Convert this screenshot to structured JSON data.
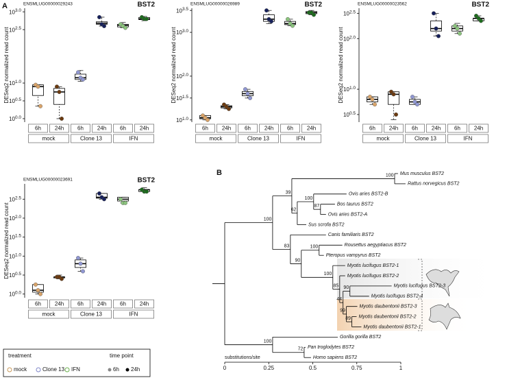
{
  "panel_labels": [
    "A",
    "B"
  ],
  "chart_data": [
    {
      "type": "box",
      "gene": "ENSMLUG00000029243",
      "title": "BST2",
      "ylabel": "DESeq2 normalized read count",
      "log_scale": true,
      "ylim": [
        0.8,
        1260
      ],
      "yticks": [
        {
          "value": 1,
          "label": "10^0.0"
        },
        {
          "value": 3.162,
          "label": "10^0.5"
        },
        {
          "value": 10,
          "label": "10^1.0"
        },
        {
          "value": 316.2,
          "label": "10^2.5"
        },
        {
          "value": 1000,
          "label": "10^3.0"
        }
      ],
      "categories": [
        "6h",
        "24h",
        "6h",
        "24h",
        "6h",
        "24h"
      ],
      "groups": [
        "mock",
        "Clone 13",
        "IFN"
      ],
      "point_colors": [
        "#d9a46a",
        "#6b3a10",
        "#9097d2",
        "#16205a",
        "#8cc47e",
        "#1d6b1d"
      ],
      "boxes": [
        {
          "low": 2.24,
          "q1": 4.47,
          "median": 7.94,
          "q3": 8.91,
          "high": 8.91,
          "points": [
            8.91,
            7.94,
            2.24
          ]
        },
        {
          "low": 1,
          "q1": 2.51,
          "median": 5.62,
          "q3": 7.08,
          "high": 7.94,
          "points": [
            7.94,
            5.62,
            1
          ]
        },
        {
          "low": 11.2,
          "q1": 12.6,
          "median": 14.1,
          "q3": 17.8,
          "high": 22.4,
          "points": [
            19.95,
            14.1,
            12.6
          ]
        },
        {
          "low": 398,
          "q1": 447,
          "median": 479,
          "q3": 525,
          "high": 708,
          "points": [
            708,
            447,
            398
          ]
        },
        {
          "low": 355,
          "q1": 376,
          "median": 417,
          "q3": 447,
          "high": 501,
          "points": [
            447,
            398,
            355
          ]
        },
        {
          "low": 562,
          "q1": 603,
          "median": 631,
          "q3": 692,
          "high": 741,
          "points": [
            708,
            631,
            631
          ]
        }
      ]
    },
    {
      "type": "box",
      "gene": "ENSMLUG00000026989",
      "title": "BST2",
      "ylabel": "DESeq2 normalized read count",
      "log_scale": true,
      "ylim": [
        8.91,
        3548
      ],
      "yticks": [
        {
          "value": 10,
          "label": "10^1.0"
        },
        {
          "value": 31.62,
          "label": "10^1.5"
        },
        {
          "value": 100,
          "label": "10^2.0"
        },
        {
          "value": 1000,
          "label": "10^3.0"
        },
        {
          "value": 3162,
          "label": "10^3.5"
        }
      ],
      "categories": [
        "6h",
        "24h",
        "6h",
        "24h",
        "6h",
        "24h"
      ],
      "groups": [
        "mock",
        "Clone 13",
        "IFN"
      ],
      "point_colors": [
        "#d9a46a",
        "#6b3a10",
        "#9097d2",
        "#16205a",
        "#8cc47e",
        "#1d6b1d"
      ],
      "boxes": [
        {
          "low": 10,
          "q1": 10.6,
          "median": 11.2,
          "q3": 12.6,
          "high": 12.6,
          "points": [
            12.6,
            11.2,
            10
          ]
        },
        {
          "low": 17.8,
          "q1": 18.8,
          "median": 20,
          "q3": 21.1,
          "high": 22.4,
          "points": [
            22.4,
            20,
            17.8
          ]
        },
        {
          "low": 31.6,
          "q1": 35.5,
          "median": 39.8,
          "q3": 44.7,
          "high": 50.1,
          "points": [
            50.1,
            39.8,
            31.6
          ]
        },
        {
          "low": 1585,
          "q1": 1778,
          "median": 1995,
          "q3": 2512,
          "high": 3162,
          "points": [
            3162,
            1995,
            1778
          ]
        },
        {
          "low": 1413,
          "q1": 1496,
          "median": 1585,
          "q3": 1778,
          "high": 1995,
          "points": [
            1995,
            1585,
            1413
          ]
        },
        {
          "low": 2512,
          "q1": 2661,
          "median": 2818,
          "q3": 2985,
          "high": 3162,
          "points": [
            2818,
            2818,
            2512
          ]
        }
      ]
    },
    {
      "type": "box",
      "gene": "ENSMLUG00000023562",
      "title": "BST2",
      "ylabel": "DESeq2 normalized read count",
      "log_scale": true,
      "ylim": [
        2.24,
        398
      ],
      "yticks": [
        {
          "value": 3.162,
          "label": "10^0.5"
        },
        {
          "value": 10,
          "label": "10^1.0"
        },
        {
          "value": 100,
          "label": "10^2.0"
        },
        {
          "value": 316.2,
          "label": "10^2.5"
        }
      ],
      "categories": [
        "6h",
        "24h",
        "6h",
        "24h",
        "6h",
        "24h"
      ],
      "groups": [
        "mock",
        "Clone 13",
        "IFN"
      ],
      "point_colors": [
        "#d9a46a",
        "#6b3a10",
        "#9097d2",
        "#16205a",
        "#8cc47e",
        "#1d6b1d"
      ],
      "boxes": [
        {
          "low": 5.01,
          "q1": 5.62,
          "median": 6.31,
          "q3": 7.08,
          "high": 7.08,
          "points": [
            7.08,
            6.31,
            5.01
          ]
        },
        {
          "low": 2.51,
          "q1": 5.01,
          "median": 7.94,
          "q3": 8.91,
          "high": 8.91,
          "points": [
            8.91,
            7.94,
            3.16
          ]
        },
        {
          "low": 5.01,
          "q1": 5.01,
          "median": 5.62,
          "q3": 6.31,
          "high": 7.08,
          "points": [
            7.08,
            5.62,
            5.01
          ]
        },
        {
          "low": 112,
          "q1": 141,
          "median": 158,
          "q3": 224,
          "high": 316,
          "points": [
            316,
            158,
            112
          ]
        },
        {
          "low": 126,
          "q1": 141,
          "median": 158,
          "q3": 178,
          "high": 200,
          "points": [
            178,
            158,
            126
          ]
        },
        {
          "low": 224,
          "q1": 224,
          "median": 251,
          "q3": 251,
          "high": 282,
          "points": [
            282,
            251,
            224
          ]
        }
      ]
    },
    {
      "type": "box",
      "gene": "ENSMLUG00000023691",
      "title": "BST2",
      "ylabel": "DESeq2 normalized read count",
      "log_scale": true,
      "ylim": [
        0.8,
        800
      ],
      "yticks": [
        {
          "value": 1,
          "label": "10^0.0"
        },
        {
          "value": 3.162,
          "label": "10^0.5"
        },
        {
          "value": 10,
          "label": "10^1.0"
        },
        {
          "value": 31.62,
          "label": "10^1.5"
        },
        {
          "value": 100,
          "label": "10^2.0"
        },
        {
          "value": 316.2,
          "label": "10^2.5"
        }
      ],
      "categories": [
        "6h",
        "24h",
        "6h",
        "24h",
        "6h",
        "24h"
      ],
      "groups": [
        "mock",
        "Clone 13",
        "IFN"
      ],
      "point_colors": [
        "#d9a46a",
        "#6b3a10",
        "#9097d2",
        "#16205a",
        "#8cc47e",
        "#1d6b1d"
      ],
      "boxes": [
        {
          "low": 1,
          "q1": 1.12,
          "median": 1.26,
          "q3": 1.78,
          "high": 1.78,
          "points": [
            1.78,
            1.26,
            1
          ]
        },
        {
          "low": 2.51,
          "q1": 2.66,
          "median": 2.82,
          "q3": 2.82,
          "high": 3.16,
          "points": [
            2.82,
            2.82,
            2.51
          ]
        },
        {
          "low": 3.98,
          "q1": 5.01,
          "median": 6.31,
          "q3": 7.94,
          "high": 8.91,
          "points": [
            8.91,
            6.31,
            3.98
          ]
        },
        {
          "low": 316,
          "q1": 335,
          "median": 355,
          "q3": 447,
          "high": 447,
          "points": [
            447,
            355,
            316
          ]
        },
        {
          "low": 251,
          "q1": 282,
          "median": 316,
          "q3": 355,
          "high": 355,
          "points": [
            316,
            251,
            251
          ]
        },
        {
          "low": 501,
          "q1": 501,
          "median": 562,
          "q3": 562,
          "high": 631,
          "points": [
            562,
            501,
            501
          ]
        }
      ]
    },
    {
      "type": "tree",
      "xlabel": "substitutions/site",
      "xlim": [
        0,
        1
      ],
      "xticks": [
        0,
        0.25,
        0.5,
        0.75,
        1
      ],
      "root": {
        "children": [
          {
            "length": 0.272,
            "support": 100,
            "children": [
              {
                "length": 0.109,
                "support": 39,
                "children": [
                  {
                    "length": 0.584,
                    "support": 100,
                    "children": [
                      {
                        "name": "Mus musculus BST2",
                        "length": 0.019
                      },
                      {
                        "name": "Rattus norvegicus BST2",
                        "length": 0.062
                      }
                    ]
                  },
                  {
                    "length": 0.031,
                    "support": 62,
                    "children": [
                      {
                        "length": 0.093,
                        "support": 100,
                        "children": [
                          {
                            "name": "Ovis aries BST2-B",
                            "length": 0.187
                          },
                          {
                            "length": 0.039,
                            "support": 87,
                            "children": [
                              {
                                "name": "Bos taurus BST2",
                                "length": 0.082
                              },
                              {
                                "name": "Ovis aries BST2-A",
                                "length": 0.031
                              }
                            ]
                          }
                        ]
                      },
                      {
                        "name": "Sus scrofa BST2",
                        "length": 0.051
                      }
                    ]
                  }
                ]
              },
              {
                "length": 0.101,
                "support": 83,
                "children": [
                  {
                    "name": "Canis familiaris BST2",
                    "length": 0.202
                  },
                  {
                    "length": 0.062,
                    "support": 90,
                    "children": [
                      {
                        "length": 0.101,
                        "support": 100,
                        "children": [
                          {
                            "name": "Rousettus aegyptiacus BST2",
                            "length": 0.132
                          },
                          {
                            "name": "Pteropus vampyrus BST2",
                            "length": 0.027
                          }
                        ]
                      },
                      {
                        "length": 0.179,
                        "support": 100,
                        "children": [
                          {
                            "name": "Myotis lucifugus BST2-1",
                            "length": 0.07
                          },
                          {
                            "length": 0.039,
                            "support": 85,
                            "children": [
                              {
                                "name": "Myotis lucifugus BST2-2",
                                "length": 0.031
                              },
                              {
                                "length": 0.019,
                                "support": 44,
                                "children": [
                                  {
                                    "length": 0.039,
                                    "support": 90,
                                    "children": [
                                      {
                                        "name": "Myotis lucifugus BST2-3",
                                        "length": 0.237
                                      },
                                      {
                                        "name": "Myotis lucifugus BST2-4",
                                        "length": 0.109
                                      }
                                    ]
                                  },
                                  {
                                    "length": 0.019,
                                    "support": 99,
                                    "children": [
                                      {
                                        "name": "Myotis daubentonii BST2-3",
                                        "length": 0.062
                                      },
                                      {
                                        "length": 0.031,
                                        "support": 89,
                                        "children": [
                                          {
                                            "name": "Myotis daubentonii BST2-2",
                                            "length": 0.027
                                          },
                                          {
                                            "name": "Myotis daubentonii BST2-1",
                                            "length": 0.054
                                          }
                                        ]
                                      }
                                    ]
                                  }
                                ]
                              }
                            ]
                          }
                        ]
                      }
                    ]
                  }
                ]
              }
            ]
          },
          {
            "length": 0.272,
            "support": 100,
            "children": [
              {
                "name": "Gorilla gorilla BST2",
                "length": 0.37
              },
              {
                "length": 0.179,
                "support": 72,
                "children": [
                  {
                    "name": "Pan troglodytes BST2",
                    "length": 0.008
                  },
                  {
                    "name": "Homo sapiens BST2",
                    "length": 0.039
                  }
                ]
              }
            ]
          }
        ]
      }
    }
  ],
  "legend": {
    "treatment_title": "treatment",
    "treatments": [
      {
        "name": "mock",
        "color": "#c89858"
      },
      {
        "name": "Clone 13",
        "color": "#7f86c8"
      },
      {
        "name": "IFN",
        "color": "#6ab04c"
      }
    ],
    "time_title": "time point",
    "times": [
      {
        "name": "6h",
        "color": "#888888"
      },
      {
        "name": "24h",
        "color": "#000000"
      }
    ]
  }
}
